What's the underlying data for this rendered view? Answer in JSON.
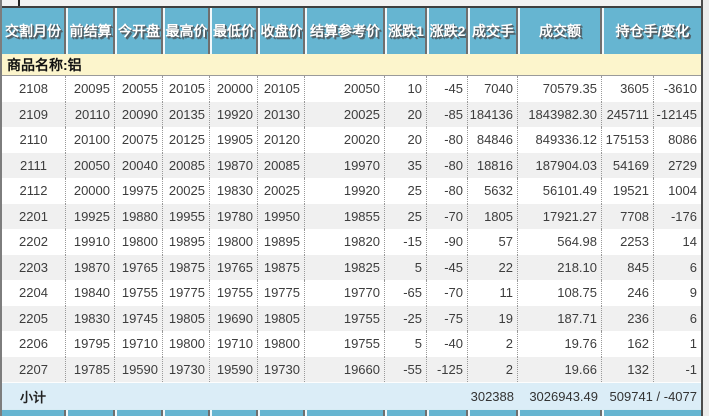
{
  "table": {
    "columns": [
      "交割月份",
      "前结算",
      "今开盘",
      "最高价",
      "最低价",
      "收盘价",
      "结算参考价",
      "涨跌1",
      "涨跌2",
      "成交手",
      "成交额",
      "持仓手/变化"
    ],
    "product_label": "商品名称:铝",
    "rows": [
      [
        "2108",
        "20095",
        "20055",
        "20105",
        "20000",
        "20105",
        "20050",
        "10",
        "-45",
        "7040",
        "70579.35",
        "3605",
        "-3610"
      ],
      [
        "2109",
        "20110",
        "20090",
        "20135",
        "19920",
        "20130",
        "20025",
        "20",
        "-85",
        "184136",
        "1843982.30",
        "245711",
        "-12145"
      ],
      [
        "2110",
        "20100",
        "20075",
        "20125",
        "19905",
        "20120",
        "20020",
        "20",
        "-80",
        "84846",
        "849336.12",
        "175153",
        "8086"
      ],
      [
        "2111",
        "20050",
        "20040",
        "20085",
        "19870",
        "20085",
        "19970",
        "35",
        "-80",
        "18816",
        "187904.03",
        "54169",
        "2729"
      ],
      [
        "2112",
        "20000",
        "19975",
        "20025",
        "19830",
        "20025",
        "19920",
        "25",
        "-80",
        "5632",
        "56101.49",
        "19521",
        "1004"
      ],
      [
        "2201",
        "19925",
        "19880",
        "19955",
        "19780",
        "19950",
        "19855",
        "25",
        "-70",
        "1805",
        "17921.27",
        "7708",
        "-176"
      ],
      [
        "2202",
        "19910",
        "19800",
        "19895",
        "19800",
        "19895",
        "19820",
        "-15",
        "-90",
        "57",
        "564.98",
        "2253",
        "14"
      ],
      [
        "2203",
        "19870",
        "19765",
        "19875",
        "19765",
        "19875",
        "19825",
        "5",
        "-45",
        "22",
        "218.10",
        "845",
        "6"
      ],
      [
        "2204",
        "19840",
        "19755",
        "19775",
        "19755",
        "19775",
        "19770",
        "-65",
        "-70",
        "11",
        "108.75",
        "246",
        "9"
      ],
      [
        "2205",
        "19830",
        "19745",
        "19805",
        "19690",
        "19805",
        "19755",
        "-25",
        "-75",
        "19",
        "187.71",
        "236",
        "6"
      ],
      [
        "2206",
        "19795",
        "19710",
        "19800",
        "19710",
        "19800",
        "19755",
        "5",
        "-40",
        "2",
        "19.76",
        "162",
        "1"
      ],
      [
        "2207",
        "19785",
        "19590",
        "19730",
        "19590",
        "19730",
        "19660",
        "-55",
        "-125",
        "2",
        "19.66",
        "132",
        "-1"
      ]
    ],
    "subtotal": {
      "label": "小计",
      "volume": "302388",
      "turnover": "3026943.49",
      "open_interest_change": "509741 / -4077"
    }
  },
  "colors": {
    "header_bg": "#66B5D1",
    "header_text": "#FFFFFF",
    "product_bg": "#FCF5CC",
    "alt_row_bg": "#F0F0F0",
    "subtotal_bg": "#DBEDF7"
  }
}
